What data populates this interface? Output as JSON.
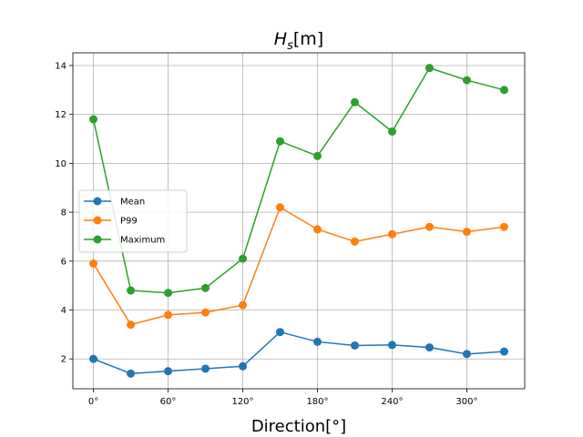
{
  "chart_data": {
    "type": "line",
    "title": "H_s[m]",
    "title_main": "H",
    "title_sub": "s",
    "title_unit": "[m]",
    "xlabel": "Direction[°]",
    "ylabel": "",
    "x": [
      0,
      30,
      60,
      90,
      120,
      150,
      180,
      210,
      240,
      270,
      300,
      330
    ],
    "xticks": [
      0,
      60,
      120,
      180,
      240,
      300
    ],
    "xtick_labels": [
      "0°",
      "60°",
      "120°",
      "180°",
      "240°",
      "300°"
    ],
    "xlim": [
      -16.5,
      346.5
    ],
    "yticks": [
      2,
      4,
      6,
      8,
      10,
      12,
      14
    ],
    "ytick_labels": [
      "2",
      "4",
      "6",
      "8",
      "10",
      "12",
      "14"
    ],
    "ylim": [
      0.78,
      14.52
    ],
    "grid": true,
    "legend_position": "center-left",
    "series": [
      {
        "name": "Mean",
        "color": "#1f77b4",
        "values": [
          2.0,
          1.4,
          1.5,
          1.6,
          1.7,
          3.1,
          2.7,
          2.55,
          2.57,
          2.47,
          2.2,
          2.3
        ]
      },
      {
        "name": "P99",
        "color": "#ff7f0e",
        "values": [
          5.9,
          3.4,
          3.8,
          3.9,
          4.2,
          8.2,
          7.3,
          6.8,
          7.1,
          7.4,
          7.2,
          7.4
        ]
      },
      {
        "name": "Maximum",
        "color": "#2ca02c",
        "values": [
          11.8,
          4.8,
          4.7,
          4.9,
          6.1,
          10.9,
          10.3,
          12.5,
          11.3,
          13.9,
          13.4,
          13.0
        ]
      }
    ]
  }
}
